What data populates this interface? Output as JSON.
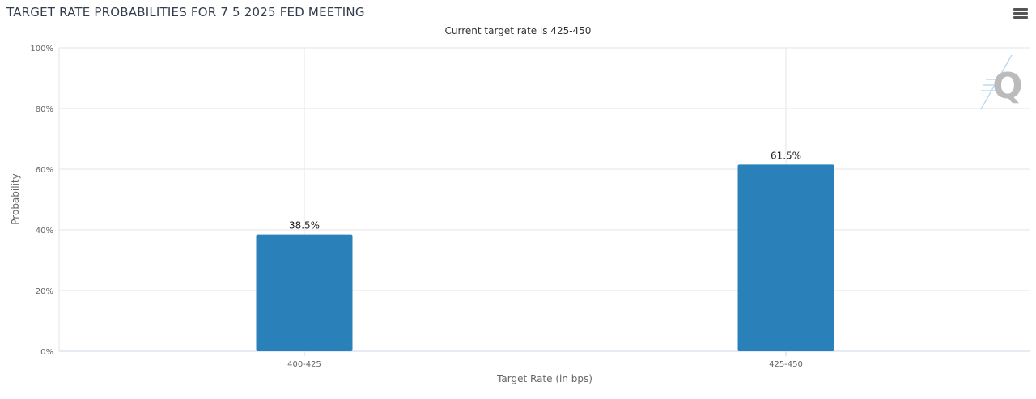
{
  "header": {
    "title": "TARGET RATE PROBABILITIES FOR 7 5 2025 FED MEETING",
    "menu_icon": "hamburger-menu-icon"
  },
  "watermark": {
    "text": "Q"
  },
  "colors": {
    "bar": "#2a80b9",
    "grid": "#e6e6e6",
    "axis": "#ccd6eb"
  },
  "chart_data": {
    "type": "bar",
    "title": "TARGET RATE PROBABILITIES FOR 7 5 2025 FED MEETING",
    "subtitle": "Current target rate is 425-450",
    "xlabel": "Target Rate (in bps)",
    "ylabel": "Probability",
    "categories": [
      "400-425",
      "425-450"
    ],
    "values": [
      38.5,
      61.5
    ],
    "data_labels": [
      "38.5%",
      "61.5%"
    ],
    "ylim": [
      0,
      100
    ],
    "yticks": [
      "0%",
      "20%",
      "40%",
      "60%",
      "80%",
      "100%"
    ],
    "grid": true,
    "legend": "none"
  }
}
